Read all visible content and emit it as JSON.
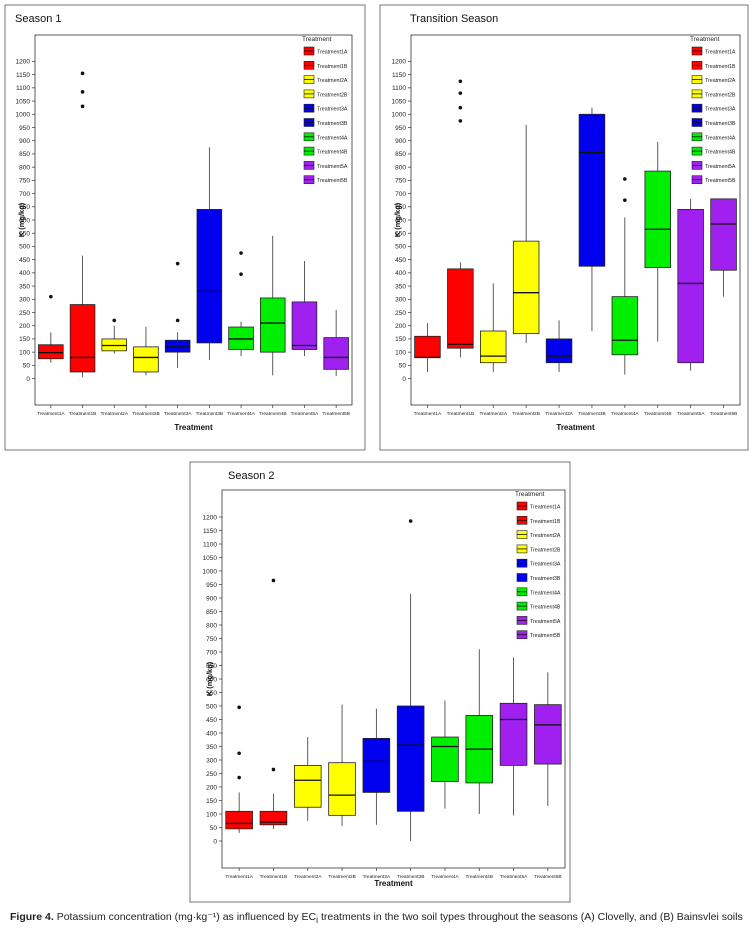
{
  "palette": {
    "Treatment1A": "#ff0000",
    "Treatment1B": "#ff0000",
    "Treatment2A": "#ffff00",
    "Treatment2B": "#ffff00",
    "Treatment3A": "#0000ee",
    "Treatment3B": "#0000ee",
    "Treatment4A": "#00ee00",
    "Treatment4B": "#00ee00",
    "Treatment5A": "#a020f0",
    "Treatment5B": "#a020f0"
  },
  "caption": {
    "label": "Figure 4.",
    "text": "Potassium concentration (mg·kg⁻¹) as influenced by EC",
    "subscript": "i",
    "text2": " treatments in the two soil types throughout the seasons (A) Clovelly, and (B) Bainsvlei soils"
  },
  "chart_data": [
    {
      "type": "box",
      "title": "Season 1",
      "xlabel": "Treatment",
      "ylabel": "K (mg/kg)",
      "ylim": [
        -100,
        1300
      ],
      "yticks": [
        0,
        50,
        100,
        150,
        200,
        250,
        300,
        350,
        400,
        450,
        500,
        550,
        600,
        650,
        700,
        750,
        800,
        850,
        900,
        950,
        1000,
        1050,
        1100,
        1150,
        1200
      ],
      "legend_title": "Treatment",
      "legend_position": "top-right",
      "categories": [
        "Treatment1A",
        "Treatment1B",
        "Treatment2A",
        "Treatment2B",
        "Treatment3A",
        "Treatment3B",
        "Treatment4A",
        "Treatment4B",
        "Treatment5A",
        "Treatment5B"
      ],
      "boxes": [
        {
          "min": 60,
          "q1": 75,
          "median": 98,
          "q3": 128,
          "max": 175,
          "outliers": [
            310
          ]
        },
        {
          "min": 5,
          "q1": 25,
          "median": 80,
          "q3": 280,
          "max": 465,
          "outliers": [
            1030,
            1085,
            1155
          ]
        },
        {
          "min": 95,
          "q1": 105,
          "median": 125,
          "q3": 150,
          "max": 200,
          "outliers": [
            220
          ]
        },
        {
          "min": 12,
          "q1": 25,
          "median": 80,
          "q3": 120,
          "max": 195,
          "outliers": []
        },
        {
          "min": 40,
          "q1": 100,
          "median": 120,
          "q3": 145,
          "max": 175,
          "outliers": [
            220,
            435
          ]
        },
        {
          "min": 70,
          "q1": 135,
          "median": 330,
          "q3": 640,
          "max": 875,
          "outliers": []
        },
        {
          "min": 85,
          "q1": 110,
          "median": 150,
          "q3": 195,
          "max": 215,
          "outliers": [
            395,
            475
          ]
        },
        {
          "min": 12,
          "q1": 100,
          "median": 210,
          "q3": 305,
          "max": 540,
          "outliers": []
        },
        {
          "min": 85,
          "q1": 110,
          "median": 125,
          "q3": 290,
          "max": 445,
          "outliers": []
        },
        {
          "min": 10,
          "q1": 35,
          "median": 80,
          "q3": 155,
          "max": 260,
          "outliers": []
        }
      ]
    },
    {
      "type": "box",
      "title": "Transition Season",
      "xlabel": "Treatment",
      "ylabel": "K (mg/kg)",
      "ylim": [
        -100,
        1300
      ],
      "yticks": [
        0,
        50,
        100,
        150,
        200,
        250,
        300,
        350,
        400,
        450,
        500,
        550,
        600,
        650,
        700,
        750,
        800,
        850,
        900,
        950,
        1000,
        1050,
        1100,
        1150,
        1200
      ],
      "legend_title": "Treatment",
      "legend_position": "top-right",
      "categories": [
        "Treatment1A",
        "Treatment1B",
        "Treatment2A",
        "Treatment2B",
        "Treatment3A",
        "Treatment3B",
        "Treatment4A",
        "Treatment4B",
        "Treatment5A",
        "Treatment5B"
      ],
      "boxes": [
        {
          "min": 25,
          "q1": 80,
          "median": 80,
          "q3": 160,
          "max": 210,
          "outliers": []
        },
        {
          "min": 80,
          "q1": 115,
          "median": 130,
          "q3": 415,
          "max": 440,
          "outliers": [
            975,
            1025,
            1080,
            1125
          ]
        },
        {
          "min": 25,
          "q1": 60,
          "median": 85,
          "q3": 180,
          "max": 360,
          "outliers": []
        },
        {
          "min": 135,
          "q1": 170,
          "median": 325,
          "q3": 520,
          "max": 960,
          "outliers": []
        },
        {
          "min": 25,
          "q1": 60,
          "median": 85,
          "q3": 150,
          "max": 220,
          "outliers": []
        },
        {
          "min": 180,
          "q1": 425,
          "median": 855,
          "q3": 1000,
          "max": 1025,
          "outliers": []
        },
        {
          "min": 15,
          "q1": 90,
          "median": 145,
          "q3": 310,
          "max": 610,
          "outliers": [
            675,
            755
          ]
        },
        {
          "min": 140,
          "q1": 420,
          "median": 565,
          "q3": 785,
          "max": 895,
          "outliers": []
        },
        {
          "min": 30,
          "q1": 60,
          "median": 360,
          "q3": 640,
          "max": 680,
          "outliers": []
        },
        {
          "min": 310,
          "q1": 410,
          "median": 585,
          "q3": 680,
          "max": 680,
          "outliers": []
        }
      ]
    },
    {
      "type": "box",
      "title": "Season 2",
      "xlabel": "Treatment",
      "ylabel": "K (mg/kg)",
      "ylim": [
        -100,
        1300
      ],
      "yticks": [
        0,
        50,
        100,
        150,
        200,
        250,
        300,
        350,
        400,
        450,
        500,
        550,
        600,
        650,
        700,
        750,
        800,
        850,
        900,
        950,
        1000,
        1050,
        1100,
        1150,
        1200
      ],
      "legend_title": "Treatment",
      "legend_position": "top-right",
      "categories": [
        "Treatment1A",
        "Treatment1B",
        "Treatment2A",
        "Treatment2B",
        "Treatment3A",
        "Treatment3B",
        "Treatment4A",
        "Treatment4B",
        "Treatment5A",
        "Treatment5B"
      ],
      "boxes": [
        {
          "min": 30,
          "q1": 45,
          "median": 65,
          "q3": 110,
          "max": 180,
          "outliers": [
            235,
            325,
            495
          ]
        },
        {
          "min": 45,
          "q1": 60,
          "median": 70,
          "q3": 110,
          "max": 175,
          "outliers": [
            265,
            965
          ]
        },
        {
          "min": 75,
          "q1": 125,
          "median": 225,
          "q3": 280,
          "max": 385,
          "outliers": []
        },
        {
          "min": 55,
          "q1": 95,
          "median": 170,
          "q3": 290,
          "max": 505,
          "outliers": []
        },
        {
          "min": 60,
          "q1": 180,
          "median": 295,
          "q3": 380,
          "max": 490,
          "outliers": []
        },
        {
          "min": 0,
          "q1": 110,
          "median": 355,
          "q3": 500,
          "max": 915,
          "outliers": [
            1185
          ]
        },
        {
          "min": 120,
          "q1": 220,
          "median": 350,
          "q3": 385,
          "max": 520,
          "outliers": []
        },
        {
          "min": 100,
          "q1": 215,
          "median": 340,
          "q3": 465,
          "max": 710,
          "outliers": []
        },
        {
          "min": 95,
          "q1": 280,
          "median": 450,
          "q3": 510,
          "max": 680,
          "outliers": []
        },
        {
          "min": 130,
          "q1": 285,
          "median": 430,
          "q3": 505,
          "max": 625,
          "outliers": []
        }
      ]
    }
  ]
}
